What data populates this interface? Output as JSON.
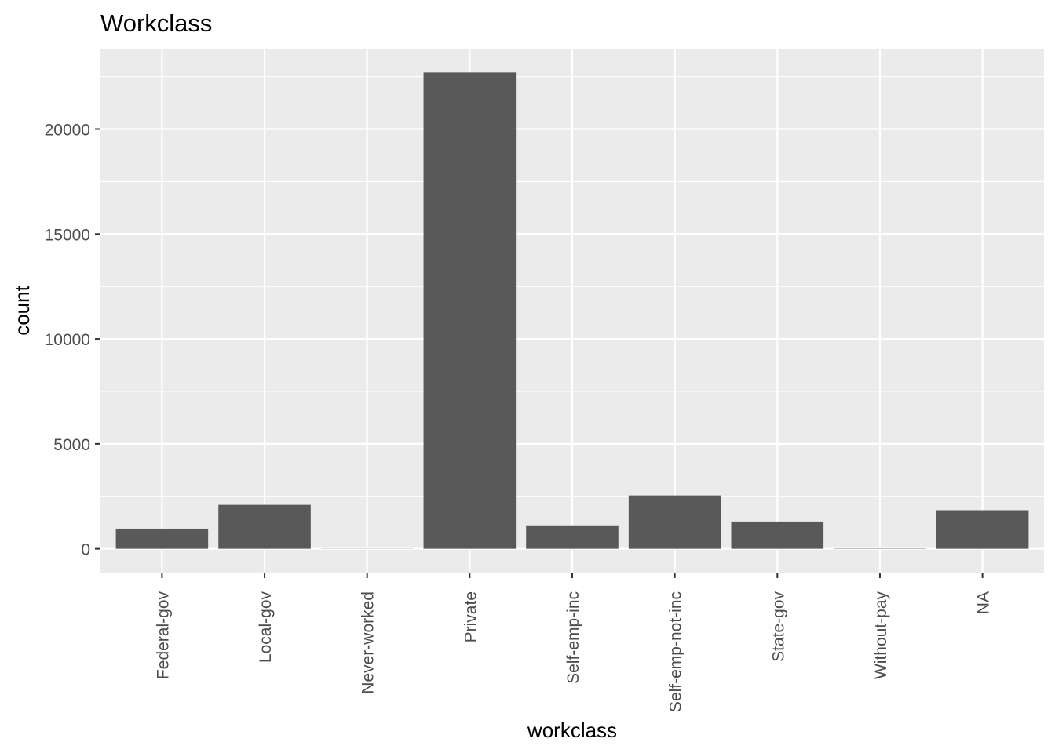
{
  "chart_data": {
    "type": "bar",
    "title": "Workclass",
    "xlabel": "workclass",
    "ylabel": "count",
    "categories": [
      "Federal-gov",
      "Local-gov",
      "Never-worked",
      "Private",
      "Self-emp-inc",
      "Self-emp-not-inc",
      "State-gov",
      "Without-pay",
      "NA"
    ],
    "values": [
      960,
      2093,
      7,
      22696,
      1116,
      2541,
      1298,
      14,
      1836
    ],
    "ylim": [
      -1135,
      23831
    ],
    "yticks": [
      0,
      5000,
      10000,
      15000,
      20000
    ],
    "yticks_labels": [
      "0",
      "5000",
      "10000",
      "15000",
      "20000"
    ],
    "grid": true,
    "legend": "none",
    "colors": {
      "bar": "#595959",
      "panel": "#ebebeb",
      "grid": "#ffffff",
      "tick": "#333333",
      "tick_label": "#4d4d4d"
    }
  }
}
